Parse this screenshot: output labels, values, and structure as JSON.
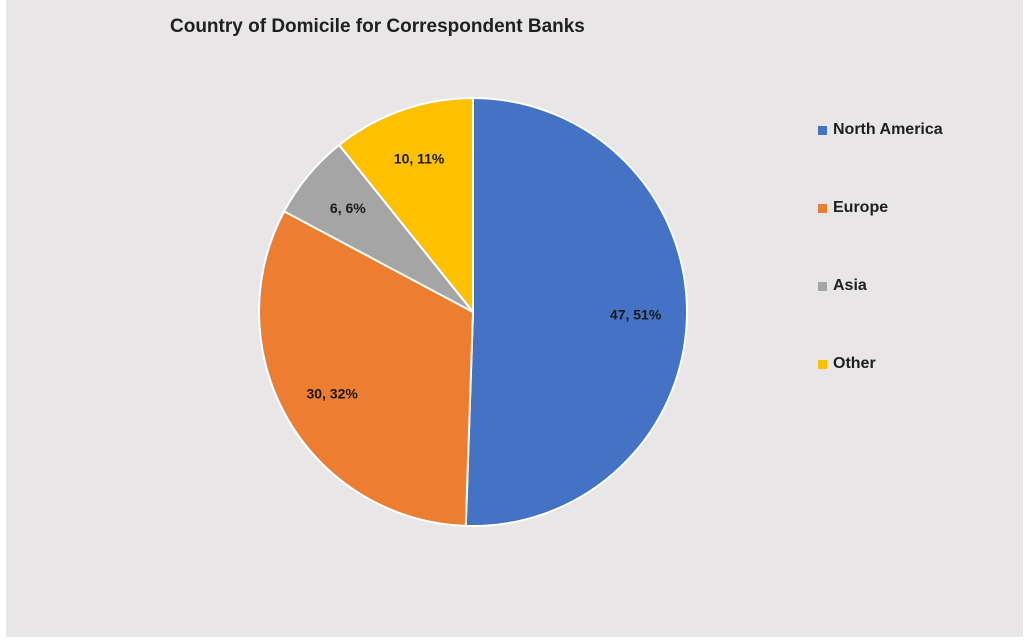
{
  "chart_data": {
    "type": "pie",
    "title": "Country of Domicile for Correspondent Banks",
    "categories": [
      "North America",
      "Europe",
      "Asia",
      "Other"
    ],
    "values": [
      47,
      30,
      6,
      10
    ],
    "labels": [
      "47, 51%",
      "30, 32%",
      "6, 6%",
      "10, 11%"
    ],
    "colors": [
      "#4472c4",
      "#ed7d31",
      "#a5a5a5",
      "#ffc000"
    ],
    "legend_position": "right"
  },
  "legend": [
    {
      "label": "North America",
      "color": "#4472c4"
    },
    {
      "label": "Europe",
      "color": "#ed7d31"
    },
    {
      "label": "Asia",
      "color": "#a5a5a5"
    },
    {
      "label": "Other",
      "color": "#ffc000"
    }
  ]
}
